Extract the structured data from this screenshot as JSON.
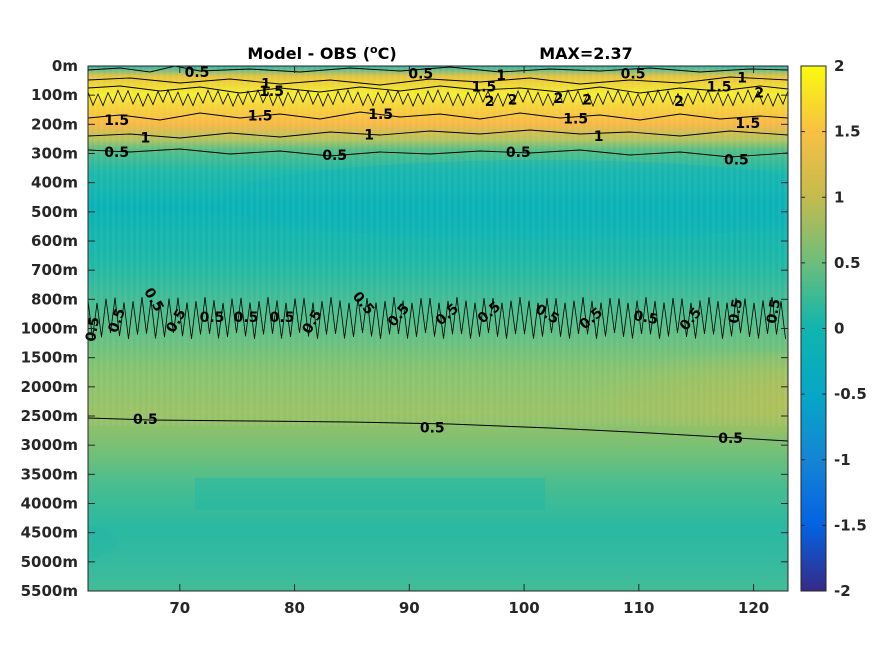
{
  "chart_data": {
    "type": "heatmap",
    "title": "Model - OBS (°C)",
    "title_prefix": "Model - OBS (",
    "title_sup": "o",
    "title_suffix": "C)",
    "max_label": "MAX=2.37",
    "x_ticks": [
      70,
      80,
      90,
      100,
      110,
      120
    ],
    "xlim": [
      62,
      123
    ],
    "y_ticks": [
      "0m",
      "100m",
      "200m",
      "300m",
      "400m",
      "500m",
      "600m",
      "700m",
      "800m",
      "1000m",
      "1500m",
      "2000m",
      "2500m",
      "3000m",
      "3500m",
      "4000m",
      "4500m",
      "5000m",
      "5500m"
    ],
    "colorbar": {
      "ticks": [
        "2",
        "1.5",
        "1",
        "0.5",
        "0",
        "-0.5",
        "-1",
        "-1.5",
        "-2"
      ],
      "range": [
        -2,
        2
      ],
      "colormap": "parula"
    },
    "depth_profile": [
      {
        "depth": "0m",
        "value": 0.3
      },
      {
        "depth": "100m",
        "value": 1.9
      },
      {
        "depth": "200m",
        "value": 1.4
      },
      {
        "depth": "300m",
        "value": 0.5
      },
      {
        "depth": "400m",
        "value": 0.1
      },
      {
        "depth": "500m",
        "value": 0.0
      },
      {
        "depth": "600m",
        "value": 0.1
      },
      {
        "depth": "700m",
        "value": 0.2
      },
      {
        "depth": "800m",
        "value": 0.4
      },
      {
        "depth": "1000m",
        "value": 0.5
      },
      {
        "depth": "1500m",
        "value": 0.65
      },
      {
        "depth": "2000m",
        "value": 0.75
      },
      {
        "depth": "2500m",
        "value": 0.6
      },
      {
        "depth": "3000m",
        "value": 0.4
      },
      {
        "depth": "3500m",
        "value": 0.3
      },
      {
        "depth": "4000m",
        "value": 0.2
      },
      {
        "depth": "4500m",
        "value": 0.15
      },
      {
        "depth": "5000m",
        "value": 0.25
      },
      {
        "depth": "5500m",
        "value": 0.3
      }
    ],
    "contour_labels": [
      {
        "text": "0.5",
        "x": 71.5,
        "depth_index": 0.2
      },
      {
        "text": "0.5",
        "x": 91.0,
        "depth_index": 0.25
      },
      {
        "text": "0.5",
        "x": 109.5,
        "depth_index": 0.25
      },
      {
        "text": "1",
        "x": 77.5,
        "depth_index": 0.6
      },
      {
        "text": "1",
        "x": 98.0,
        "depth_index": 0.3
      },
      {
        "text": "1",
        "x": 119.0,
        "depth_index": 0.4
      },
      {
        "text": "1.5",
        "x": 78.0,
        "depth_index": 0.85
      },
      {
        "text": "1.5",
        "x": 96.5,
        "depth_index": 0.7
      },
      {
        "text": "1.5",
        "x": 117.0,
        "depth_index": 0.7
      },
      {
        "text": "2",
        "x": 97.0,
        "depth_index": 1.2
      },
      {
        "text": "2",
        "x": 99.0,
        "depth_index": 1.15
      },
      {
        "text": "2",
        "x": 103.0,
        "depth_index": 1.1
      },
      {
        "text": "2",
        "x": 105.5,
        "depth_index": 1.15
      },
      {
        "text": "2",
        "x": 113.5,
        "depth_index": 1.2
      },
      {
        "text": "2",
        "x": 120.5,
        "depth_index": 0.9
      },
      {
        "text": "1.5",
        "x": 64.5,
        "depth_index": 1.85
      },
      {
        "text": "1.5",
        "x": 77.0,
        "depth_index": 1.7
      },
      {
        "text": "1.5",
        "x": 87.5,
        "depth_index": 1.65
      },
      {
        "text": "1.5",
        "x": 104.5,
        "depth_index": 1.8
      },
      {
        "text": "1.5",
        "x": 119.5,
        "depth_index": 1.95
      },
      {
        "text": "1",
        "x": 67.0,
        "depth_index": 2.45
      },
      {
        "text": "1",
        "x": 86.5,
        "depth_index": 2.35
      },
      {
        "text": "1",
        "x": 106.5,
        "depth_index": 2.4
      },
      {
        "text": "0.5",
        "x": 64.5,
        "depth_index": 2.95
      },
      {
        "text": "0.5",
        "x": 83.5,
        "depth_index": 3.05
      },
      {
        "text": "0.5",
        "x": 99.5,
        "depth_index": 2.95
      },
      {
        "text": "0.5",
        "x": 118.5,
        "depth_index": 3.2
      },
      {
        "text": "0.5",
        "x": 67.0,
        "depth_index": 12.1
      },
      {
        "text": "0.5",
        "x": 92.0,
        "depth_index": 12.4
      },
      {
        "text": "0.5",
        "x": 118.0,
        "depth_index": 12.75
      }
    ]
  }
}
